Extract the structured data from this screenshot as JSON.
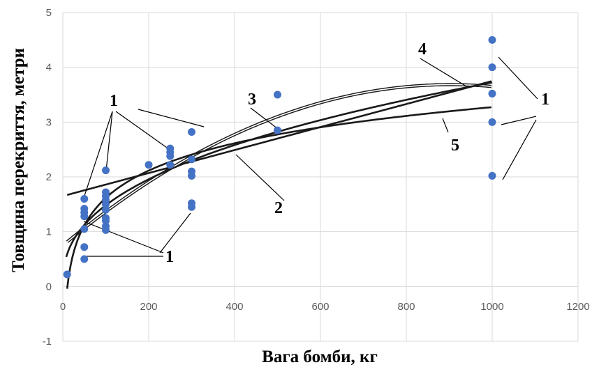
{
  "chart_data": {
    "type": "scatter",
    "xlabel": "Вага бомби, кг",
    "ylabel": "Товщина перекриття, метри",
    "xlim": [
      0,
      1200
    ],
    "ylim": [
      -1,
      5
    ],
    "x_ticks": [
      "0",
      "200",
      "400",
      "600",
      "800",
      "1000",
      "1200"
    ],
    "y_ticks": [
      "-1",
      "0",
      "1",
      "2",
      "3",
      "4",
      "5"
    ],
    "grid": true,
    "marker_color": "#4472C4",
    "line_color": "#1a1a1a",
    "points": [
      {
        "x": 10,
        "y": 0.22
      },
      {
        "x": 50,
        "y": 1.6
      },
      {
        "x": 50,
        "y": 1.42
      },
      {
        "x": 50,
        "y": 1.35
      },
      {
        "x": 50,
        "y": 1.28
      },
      {
        "x": 50,
        "y": 1.05
      },
      {
        "x": 50,
        "y": 0.72
      },
      {
        "x": 50,
        "y": 0.5
      },
      {
        "x": 100,
        "y": 2.12
      },
      {
        "x": 100,
        "y": 1.72
      },
      {
        "x": 100,
        "y": 1.65
      },
      {
        "x": 100,
        "y": 1.58
      },
      {
        "x": 100,
        "y": 1.5
      },
      {
        "x": 100,
        "y": 1.4
      },
      {
        "x": 100,
        "y": 1.25
      },
      {
        "x": 100,
        "y": 1.2
      },
      {
        "x": 100,
        "y": 1.1
      },
      {
        "x": 100,
        "y": 1.03
      },
      {
        "x": 200,
        "y": 2.22
      },
      {
        "x": 250,
        "y": 2.52
      },
      {
        "x": 250,
        "y": 2.45
      },
      {
        "x": 250,
        "y": 2.38
      },
      {
        "x": 250,
        "y": 2.22
      },
      {
        "x": 300,
        "y": 2.82
      },
      {
        "x": 300,
        "y": 2.32
      },
      {
        "x": 300,
        "y": 2.1
      },
      {
        "x": 300,
        "y": 2.02
      },
      {
        "x": 300,
        "y": 1.52
      },
      {
        "x": 300,
        "y": 1.45
      },
      {
        "x": 500,
        "y": 3.5
      },
      {
        "x": 500,
        "y": 2.85
      },
      {
        "x": 1000,
        "y": 4.5
      },
      {
        "x": 1000,
        "y": 4.0
      },
      {
        "x": 1000,
        "y": 3.52
      },
      {
        "x": 1000,
        "y": 3.0
      },
      {
        "x": 1000,
        "y": 2.02
      }
    ],
    "trendlines": [
      {
        "label": "2",
        "kind": "linear",
        "a": 1.65,
        "b": 0.0021
      },
      {
        "label": "3",
        "kind": "polynomial",
        "a": 0.75,
        "b": 0.0065,
        "c": -3.6e-06
      },
      {
        "label": "4",
        "kind": "power",
        "a": 0.235,
        "b": 0.4
      },
      {
        "label": "5",
        "kind": "logarithmic",
        "a": -1.7,
        "b": 0.72
      }
    ],
    "annotations": [
      {
        "text": "1"
      },
      {
        "text": "1"
      },
      {
        "text": "1"
      },
      {
        "text": "1"
      },
      {
        "text": "2"
      },
      {
        "text": "3"
      },
      {
        "text": "4"
      },
      {
        "text": "5"
      }
    ]
  }
}
